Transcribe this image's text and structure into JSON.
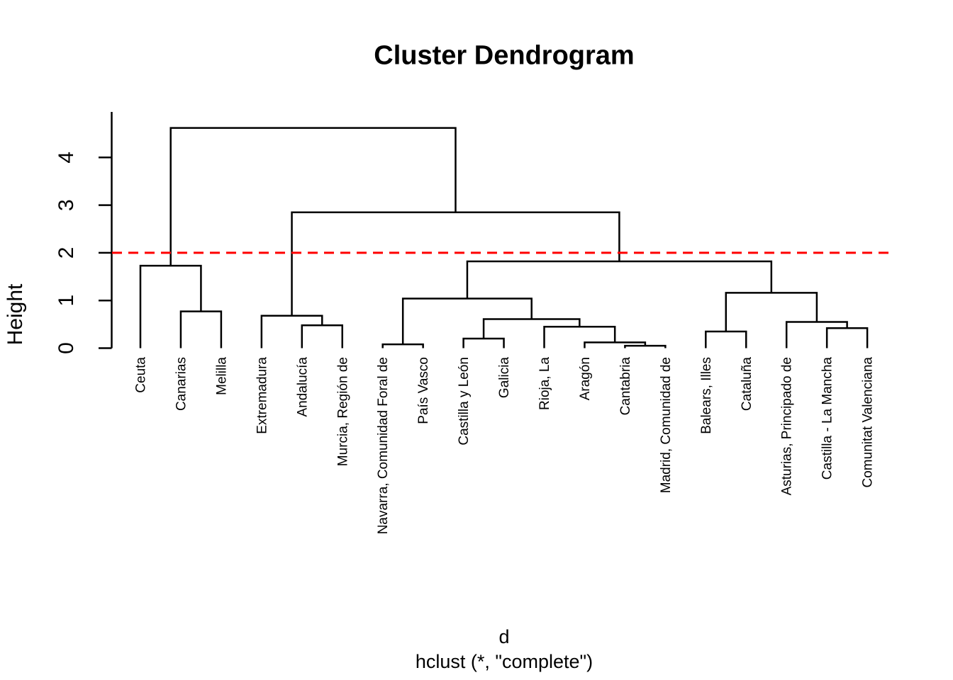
{
  "title": "Cluster Dendrogram",
  "axis": {
    "ylabel": "Height",
    "yticks": [
      "0",
      "1",
      "2",
      "3",
      "4"
    ]
  },
  "caption": {
    "line1": "d",
    "line2": "hclust (*, \"complete\")"
  },
  "colors": {
    "branch": "#000000",
    "cutline": "#ff0000",
    "background": "#ffffff",
    "text": "#000000"
  },
  "chart_data": {
    "type": "dendrogram",
    "title": "Cluster Dendrogram",
    "ylabel": "Height",
    "xlabel": "d",
    "subtitle": "hclust (*, \"complete\")",
    "ylim": [
      0,
      4.95
    ],
    "yticks": [
      0,
      1,
      2,
      3,
      4
    ],
    "grid": false,
    "cut_line": {
      "height": 2.0,
      "color": "#ff0000",
      "style": "dashed"
    },
    "leaf_order": [
      "Ceuta",
      "Canarias",
      "Melilla",
      "Extremadura",
      "Andalucía",
      "Murcia, Región de",
      "Navarra, Comunidad Foral de",
      "País Vasco",
      "Castilla y León",
      "Galicia",
      "Rioja, La",
      "Aragón",
      "Cantabria",
      "Madrid, Comunidad de",
      "Balears, Illes",
      "Cataluña",
      "Asturias, Principado de",
      "Castilla - La Mancha",
      "Comunitat Valenciana"
    ],
    "tree": {
      "h": 4.62,
      "c": [
        {
          "h": 1.73,
          "c": [
            {
              "label": "Ceuta"
            },
            {
              "h": 0.77,
              "c": [
                {
                  "label": "Canarias"
                },
                {
                  "label": "Melilla"
                }
              ]
            }
          ]
        },
        {
          "h": 2.85,
          "c": [
            {
              "h": 0.68,
              "c": [
                {
                  "label": "Extremadura"
                },
                {
                  "h": 0.48,
                  "c": [
                    {
                      "label": "Andalucía"
                    },
                    {
                      "label": "Murcia, Región de"
                    }
                  ]
                }
              ]
            },
            {
              "h": 1.82,
              "c": [
                {
                  "h": 1.04,
                  "c": [
                    {
                      "h": 0.08,
                      "c": [
                        {
                          "label": "Navarra, Comunidad Foral de"
                        },
                        {
                          "label": "País Vasco"
                        }
                      ]
                    },
                    {
                      "h": 0.61,
                      "c": [
                        {
                          "h": 0.2,
                          "c": [
                            {
                              "label": "Castilla y León"
                            },
                            {
                              "label": "Galicia"
                            }
                          ]
                        },
                        {
                          "h": 0.45,
                          "c": [
                            {
                              "label": "Rioja, La"
                            },
                            {
                              "h": 0.12,
                              "c": [
                                {
                                  "label": "Aragón"
                                },
                                {
                                  "h": 0.05,
                                  "c": [
                                    {
                                      "label": "Cantabria"
                                    },
                                    {
                                      "label": "Madrid, Comunidad de"
                                    }
                                  ]
                                }
                              ]
                            }
                          ]
                        }
                      ]
                    }
                  ]
                },
                {
                  "h": 1.16,
                  "c": [
                    {
                      "h": 0.35,
                      "c": [
                        {
                          "label": "Balears, Illes"
                        },
                        {
                          "label": "Cataluña"
                        }
                      ]
                    },
                    {
                      "h": 0.55,
                      "c": [
                        {
                          "label": "Asturias, Principado de"
                        },
                        {
                          "h": 0.42,
                          "c": [
                            {
                              "label": "Castilla - La Mancha"
                            },
                            {
                              "label": "Comunitat Valenciana"
                            }
                          ]
                        }
                      ]
                    }
                  ]
                }
              ]
            }
          ]
        }
      ]
    }
  }
}
